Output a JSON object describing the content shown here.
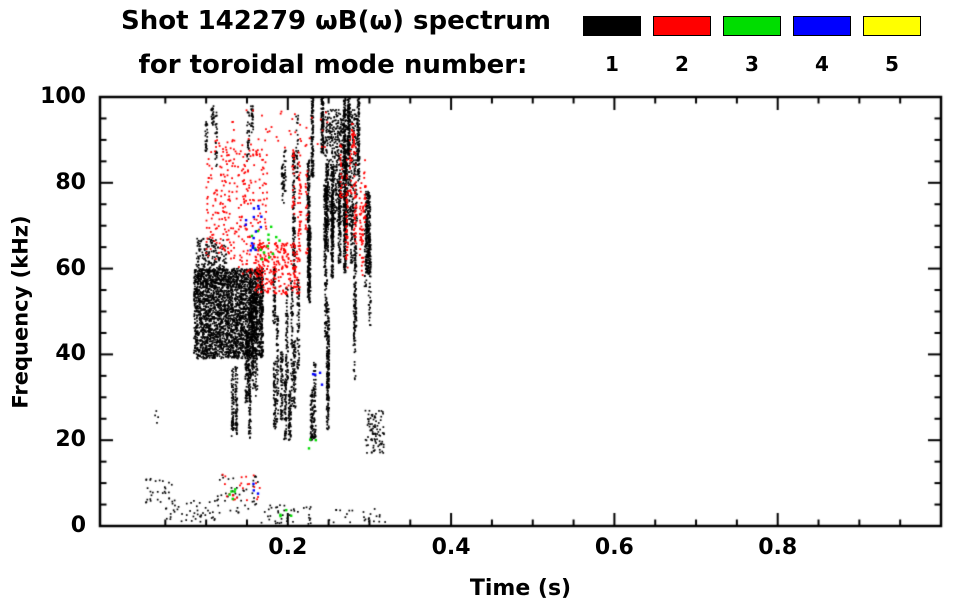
{
  "chart_data": {
    "type": "scatter",
    "title": "Shot 142279 ωB(ω) spectrum",
    "subtitle": "for toroidal mode number:",
    "xlabel": "Time (s)",
    "ylabel": "Frequency (kHz)",
    "xlim": [
      -0.03,
      1.0
    ],
    "ylim": [
      0,
      100
    ],
    "x_major_ticks": [
      0.2,
      0.4,
      0.6,
      0.8
    ],
    "x_tick_labels": [
      "0.2",
      "0.4",
      "0.6",
      "0.8"
    ],
    "x_minor_step": 0.05,
    "y_major_ticks": [
      0,
      20,
      40,
      60,
      80,
      100
    ],
    "y_tick_labels": [
      "0",
      "20",
      "40",
      "60",
      "80",
      "100"
    ],
    "y_minor_step": 5,
    "grid": false,
    "background": "#ffffff",
    "frame_color": "#000000",
    "legend": {
      "position": "top-right",
      "entries": [
        {
          "label": "1",
          "color": "#000000"
        },
        {
          "label": "2",
          "color": "#ff0000"
        },
        {
          "label": "3",
          "color": "#00dd00"
        },
        {
          "label": "4",
          "color": "#0000ff"
        },
        {
          "label": "5",
          "color": "#ffff00"
        }
      ]
    },
    "modes": {
      "1": "#000000",
      "2": "#ff0000",
      "3": "#00dd00",
      "4": "#0000ff",
      "5": "#ffff00"
    },
    "clusters": [
      {
        "mode": 1,
        "pattern": "speckle",
        "t": [
          0.085,
          0.17
        ],
        "f": [
          39,
          60
        ],
        "points": 2800
      },
      {
        "mode": 1,
        "pattern": "speckle",
        "t": [
          0.088,
          0.125
        ],
        "f": [
          57,
          67
        ],
        "points": 200
      },
      {
        "mode": 1,
        "pattern": "columns",
        "t": [
          0.125,
          0.25
        ],
        "f": [
          20,
          60
        ],
        "columns": 26,
        "points": 1800
      },
      {
        "mode": 1,
        "pattern": "columns",
        "t": [
          0.205,
          0.3
        ],
        "f": [
          52,
          100
        ],
        "columns": 18,
        "points": 2200
      },
      {
        "mode": 1,
        "pattern": "speckle",
        "t": [
          0.245,
          0.285
        ],
        "f": [
          70,
          97
        ],
        "points": 700
      },
      {
        "mode": 1,
        "pattern": "columns",
        "t": [
          0.275,
          0.307
        ],
        "f": [
          25,
          75
        ],
        "columns": 6,
        "points": 300
      },
      {
        "mode": 1,
        "pattern": "speckle",
        "t": [
          0.295,
          0.318
        ],
        "f": [
          17,
          27
        ],
        "points": 90
      },
      {
        "mode": 1,
        "pattern": "speckle",
        "t": [
          0.025,
          0.06
        ],
        "f": [
          5,
          11
        ],
        "points": 30
      },
      {
        "mode": 1,
        "pattern": "speckle",
        "t": [
          0.05,
          0.115
        ],
        "f": [
          1,
          6
        ],
        "points": 45
      },
      {
        "mode": 1,
        "pattern": "speckle",
        "t": [
          0.11,
          0.165
        ],
        "f": [
          3,
          12
        ],
        "points": 45
      },
      {
        "mode": 1,
        "pattern": "speckle",
        "t": [
          0.165,
          0.23
        ],
        "f": [
          0.5,
          5
        ],
        "points": 40
      },
      {
        "mode": 1,
        "pattern": "speckle",
        "t": [
          0.25,
          0.32
        ],
        "f": [
          0.5,
          4
        ],
        "points": 25
      },
      {
        "mode": 1,
        "pattern": "speckle",
        "t": [
          0.035,
          0.045
        ],
        "f": [
          24,
          27
        ],
        "points": 4
      },
      {
        "mode": 1,
        "pattern": "columns",
        "t": [
          0.1,
          0.118
        ],
        "f": [
          80,
          98
        ],
        "columns": 3,
        "points": 80
      },
      {
        "mode": 1,
        "pattern": "columns",
        "t": [
          0.15,
          0.17
        ],
        "f": [
          82,
          98
        ],
        "columns": 2,
        "points": 60
      },
      {
        "mode": 1,
        "pattern": "columns",
        "t": [
          0.19,
          0.215
        ],
        "f": [
          72,
          96
        ],
        "columns": 3,
        "points": 90
      },
      {
        "mode": 2,
        "pattern": "speckle",
        "t": [
          0.1,
          0.135
        ],
        "f": [
          62,
          90
        ],
        "points": 150
      },
      {
        "mode": 2,
        "pattern": "speckle",
        "t": [
          0.135,
          0.175
        ],
        "f": [
          58,
          88
        ],
        "points": 170
      },
      {
        "mode": 2,
        "pattern": "speckle",
        "t": [
          0.16,
          0.215
        ],
        "f": [
          54,
          66
        ],
        "points": 260
      },
      {
        "mode": 2,
        "pattern": "columns",
        "t": [
          0.19,
          0.3
        ],
        "f": [
          58,
          95
        ],
        "columns": 14,
        "points": 320
      },
      {
        "mode": 2,
        "pattern": "speckle",
        "t": [
          0.12,
          0.17
        ],
        "f": [
          6,
          12
        ],
        "points": 25
      },
      {
        "mode": 2,
        "pattern": "speckle",
        "t": [
          0.13,
          0.25
        ],
        "f": [
          88,
          97
        ],
        "points": 40
      },
      {
        "mode": 3,
        "pattern": "speckle",
        "t": [
          0.155,
          0.19
        ],
        "f": [
          62,
          70
        ],
        "points": 14
      },
      {
        "mode": 3,
        "pattern": "speckle",
        "t": [
          0.128,
          0.14
        ],
        "f": [
          6,
          9
        ],
        "points": 5
      },
      {
        "mode": 3,
        "pattern": "speckle",
        "t": [
          0.19,
          0.205
        ],
        "f": [
          1.5,
          4
        ],
        "points": 4
      },
      {
        "mode": 3,
        "pattern": "speckle",
        "t": [
          0.225,
          0.235
        ],
        "f": [
          18,
          21
        ],
        "points": 3
      },
      {
        "mode": 4,
        "pattern": "speckle",
        "t": [
          0.148,
          0.168
        ],
        "f": [
          64,
          80
        ],
        "points": 16
      },
      {
        "mode": 4,
        "pattern": "speckle",
        "t": [
          0.23,
          0.245
        ],
        "f": [
          32,
          36
        ],
        "points": 4
      },
      {
        "mode": 4,
        "pattern": "speckle",
        "t": [
          0.155,
          0.165
        ],
        "f": [
          7,
          10
        ],
        "points": 3
      }
    ]
  }
}
